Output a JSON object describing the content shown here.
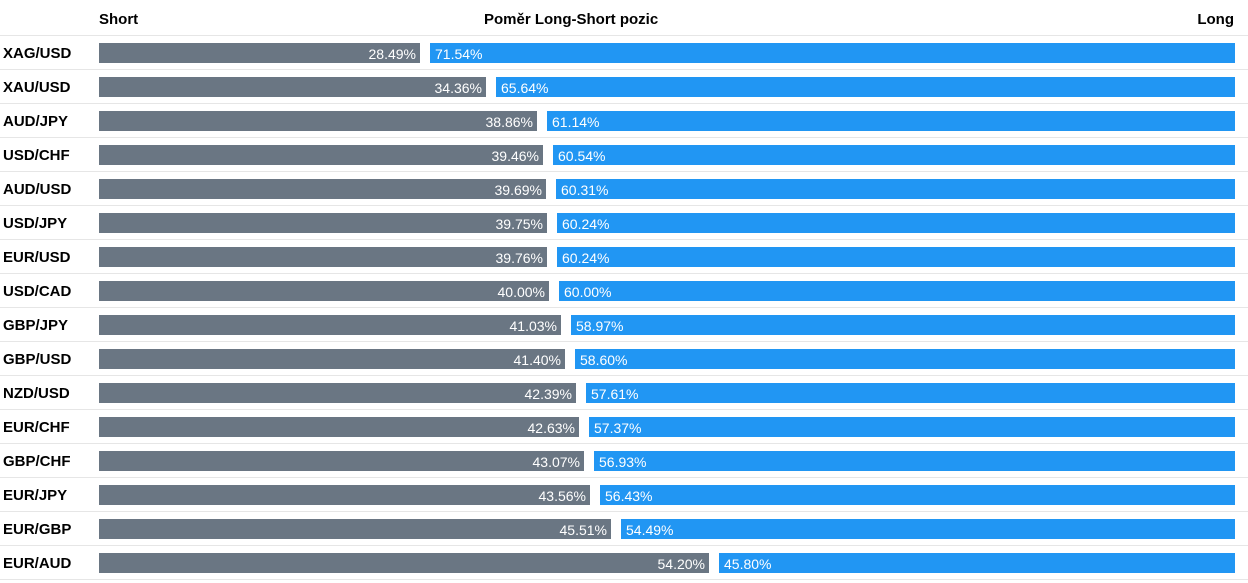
{
  "header": {
    "short_label": "Short",
    "title": "Poměr Long-Short pozic",
    "long_label": "Long"
  },
  "colors": {
    "short": "#6a7683",
    "long": "#2196f3"
  },
  "chart_data": {
    "type": "bar",
    "stacked": true,
    "orientation": "horizontal",
    "title": "Poměr Long-Short pozic",
    "categories": [
      "XAG/USD",
      "XAU/USD",
      "AUD/JPY",
      "USD/CHF",
      "AUD/USD",
      "USD/JPY",
      "EUR/USD",
      "USD/CAD",
      "GBP/JPY",
      "GBP/USD",
      "NZD/USD",
      "EUR/CHF",
      "GBP/CHF",
      "EUR/JPY",
      "EUR/GBP",
      "EUR/AUD"
    ],
    "series": [
      {
        "name": "Short",
        "values": [
          28.49,
          34.36,
          38.86,
          39.46,
          39.69,
          39.75,
          39.76,
          40.0,
          41.03,
          41.4,
          42.39,
          42.63,
          43.07,
          43.56,
          45.51,
          54.2
        ]
      },
      {
        "name": "Long",
        "values": [
          71.54,
          65.64,
          61.14,
          60.54,
          60.31,
          60.24,
          60.24,
          60.0,
          58.97,
          58.6,
          57.61,
          57.37,
          56.93,
          56.43,
          54.49,
          45.8
        ]
      }
    ],
    "short_labels": [
      "28.49%",
      "34.36%",
      "38.86%",
      "39.46%",
      "39.69%",
      "39.75%",
      "39.76%",
      "40.00%",
      "41.03%",
      "41.40%",
      "42.39%",
      "42.63%",
      "43.07%",
      "43.56%",
      "45.51%",
      "54.20%"
    ],
    "long_labels": [
      "71.54%",
      "65.64%",
      "61.14%",
      "60.54%",
      "60.31%",
      "60.24%",
      "60.24%",
      "60.00%",
      "58.97%",
      "58.60%",
      "57.61%",
      "57.37%",
      "56.93%",
      "56.43%",
      "54.49%",
      "45.80%"
    ],
    "xlim": [
      0,
      100
    ],
    "legend": "none",
    "grid": false
  }
}
